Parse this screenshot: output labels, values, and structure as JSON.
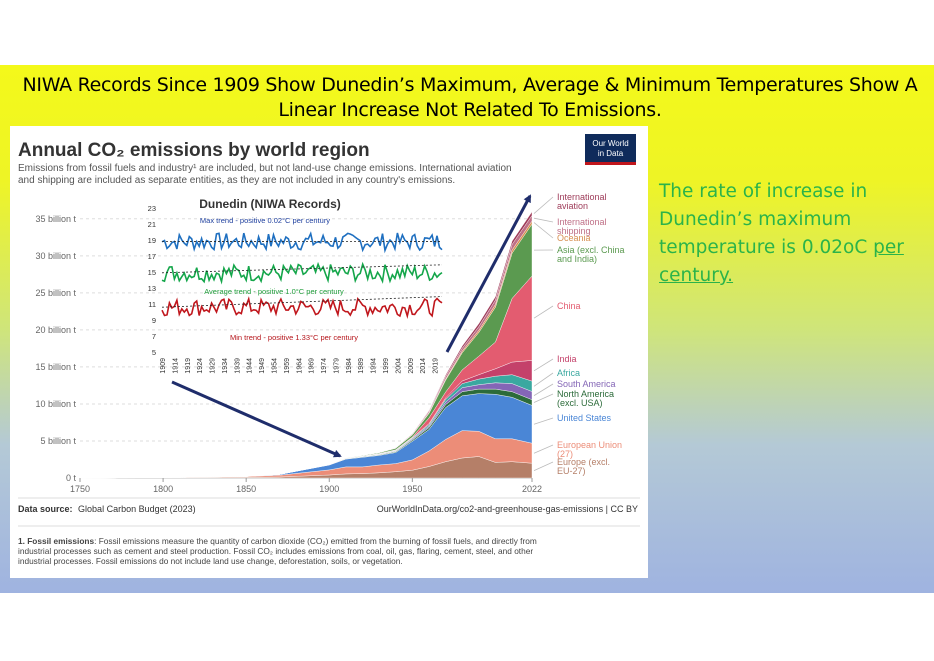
{
  "slide": {
    "title_line1": "NIWA Records Since 1909 Show Dunedin’s Maximum, Average & Minimum Temperatures Show A",
    "title_line2": "Linear Increase Not Related To Emissions.",
    "side_text_plain": "The rate of increase in Dunedin’s maximum temperature is 0.02oC ",
    "side_text_underlined": "per century.",
    "colors": {
      "background_top": "#f4f91a",
      "background_bottom": "#9fb3e0",
      "side_text": "#2bb34a",
      "arrow": "#1f2d6b"
    }
  },
  "chart_data": [
    {
      "type": "area",
      "stacked": true,
      "title": "Annual CO₂ emissions by world region",
      "subtitle_line1": "Emissions from fossil fuels and industry¹ are included, but not land-use change emissions. International aviation",
      "subtitle_line2": "and shipping are included as separate entities, as they are not included in any country's emissions.",
      "logo_line1": "Our World",
      "logo_line2": "in Data",
      "x_ticks": [
        "1750",
        "1800",
        "1850",
        "1900",
        "1950",
        "2022"
      ],
      "x_tick_values": [
        1750,
        1800,
        1850,
        1900,
        1950,
        2022
      ],
      "y_ticks": [
        "0 t",
        "5 billion t",
        "10 billion t",
        "15 billion t",
        "20 billion t",
        "25 billion t",
        "30 billion t",
        "35 billion t"
      ],
      "y_tick_values": [
        0,
        5,
        10,
        15,
        20,
        25,
        30,
        35
      ],
      "y_unit": "billion t",
      "xlim": [
        1750,
        2022
      ],
      "ylim": [
        0,
        37
      ],
      "grid": "horizontal dashed",
      "legend": "right, direct labels",
      "x": [
        1750,
        1800,
        1850,
        1870,
        1900,
        1910,
        1920,
        1930,
        1940,
        1950,
        1960,
        1970,
        1980,
        1990,
        2000,
        2010,
        2022
      ],
      "series": [
        {
          "name": "Europe (excl. EU-27)",
          "color": "#b57f68",
          "values": [
            0.01,
            0.04,
            0.1,
            0.14,
            0.4,
            0.55,
            0.6,
            0.7,
            0.85,
            1.05,
            1.55,
            2.2,
            2.7,
            2.9,
            2.1,
            2.2,
            2.0
          ]
        },
        {
          "name": "European Union (27)",
          "color": "#ec8d78",
          "values": [
            0.0,
            0.02,
            0.1,
            0.24,
            0.7,
            0.95,
            0.9,
            1.05,
            1.1,
            1.4,
            2.1,
            3.0,
            3.7,
            3.4,
            3.2,
            3.1,
            2.7
          ]
        },
        {
          "name": "United States",
          "color": "#4a86d6",
          "values": [
            0.0,
            0.0,
            0.02,
            0.1,
            0.65,
            1.05,
            1.3,
            1.3,
            1.5,
            2.5,
            2.9,
            4.3,
            4.7,
            5.1,
            6.0,
            5.6,
            5.1
          ]
        },
        {
          "name": "North America (excl. USA)",
          "color": "#2c6b3a",
          "values": [
            0.0,
            0.0,
            0.0,
            0.01,
            0.03,
            0.06,
            0.07,
            0.08,
            0.1,
            0.17,
            0.25,
            0.4,
            0.55,
            0.6,
            0.7,
            0.75,
            0.78
          ]
        },
        {
          "name": "South America",
          "color": "#8466b6",
          "values": [
            0.0,
            0.0,
            0.0,
            0.0,
            0.01,
            0.02,
            0.03,
            0.05,
            0.07,
            0.13,
            0.2,
            0.35,
            0.55,
            0.6,
            0.85,
            1.1,
            1.1
          ]
        },
        {
          "name": "Africa",
          "color": "#3aa8a0",
          "values": [
            0.0,
            0.0,
            0.0,
            0.0,
            0.01,
            0.02,
            0.03,
            0.05,
            0.08,
            0.12,
            0.2,
            0.35,
            0.55,
            0.75,
            0.9,
            1.2,
            1.4
          ]
        },
        {
          "name": "India",
          "color": "#c4416a",
          "values": [
            0.0,
            0.0,
            0.0,
            0.0,
            0.02,
            0.03,
            0.04,
            0.05,
            0.06,
            0.08,
            0.14,
            0.2,
            0.35,
            0.6,
            1.0,
            1.7,
            2.8
          ]
        },
        {
          "name": "China",
          "color": "#e35c70",
          "values": [
            0.0,
            0.0,
            0.0,
            0.0,
            0.0,
            0.01,
            0.02,
            0.03,
            0.05,
            0.08,
            0.78,
            0.8,
            1.5,
            2.5,
            3.6,
            8.6,
            11.4
          ]
        },
        {
          "name": "Asia (excl. China and India)",
          "color": "#5b9a50",
          "values": [
            0.0,
            0.0,
            0.0,
            0.0,
            0.02,
            0.04,
            0.07,
            0.1,
            0.2,
            0.3,
            0.6,
            1.6,
            2.3,
            3.2,
            4.7,
            6.1,
            7.0
          ]
        },
        {
          "name": "Oceania",
          "color": "#d78f50",
          "values": [
            0.0,
            0.0,
            0.0,
            0.0,
            0.01,
            0.02,
            0.02,
            0.03,
            0.04,
            0.06,
            0.1,
            0.16,
            0.23,
            0.3,
            0.38,
            0.44,
            0.43
          ]
        },
        {
          "name": "International shipping",
          "color": "#bf6f86",
          "values": [
            0.0,
            0.0,
            0.0,
            0.0,
            0.0,
            0.0,
            0.0,
            0.02,
            0.05,
            0.1,
            0.2,
            0.35,
            0.4,
            0.5,
            0.6,
            0.75,
            0.75
          ]
        },
        {
          "name": "International aviation",
          "color": "#9e3b59",
          "values": [
            0.0,
            0.0,
            0.0,
            0.0,
            0.0,
            0.0,
            0.0,
            0.0,
            0.0,
            0.02,
            0.1,
            0.2,
            0.3,
            0.4,
            0.45,
            0.45,
            0.5
          ]
        }
      ],
      "source_label": "Data source:",
      "source_value": "Global Carbon Budget (2023)",
      "url_text": "OurWorldInData.org/co2-and-greenhouse-gas-emissions | CC BY",
      "footnote_bold": "1. Fossil emissions",
      "footnote_line1": ": Fossil emissions measure the quantity of carbon dioxide (CO₂) emitted from the burning of fossil fuels, and directly from",
      "footnote_line2": "industrial processes such as cement and steel production. Fossil CO₂ includes emissions from coal, oil, gas, flaring, cement, steel, and other",
      "footnote_line3": "industrial processes. Fossil emissions do not include land use change, deforestation, soils, or vegetation."
    },
    {
      "type": "line",
      "title": "Dunedin (NIWA Records)",
      "y_ticks": [
        "5",
        "7",
        "9",
        "11",
        "13",
        "15",
        "17",
        "19",
        "21",
        "23"
      ],
      "ylim": [
        5,
        23
      ],
      "x_ticks": [
        "1909",
        "1914",
        "1919",
        "1924",
        "1929",
        "1934",
        "1939",
        "1944",
        "1949",
        "1954",
        "1959",
        "1964",
        "1969",
        "1974",
        "1979",
        "1984",
        "1989",
        "1994",
        "1999",
        "2004",
        "2009",
        "2014",
        "2019"
      ],
      "xlim": [
        1909,
        2022
      ],
      "annotations": [
        "Max trend - positive 0.02°C per century",
        "Average trend - positive 1.0°C per century",
        "Min trend - positive 1.33°C per century"
      ],
      "series": [
        {
          "name": "Max",
          "color": "#1e6fc0",
          "mean": 18.8
        },
        {
          "name": "Average",
          "color": "#14a64a",
          "mean": 14.9
        },
        {
          "name": "Min",
          "color": "#c0161c",
          "mean": 10.6
        }
      ]
    }
  ]
}
